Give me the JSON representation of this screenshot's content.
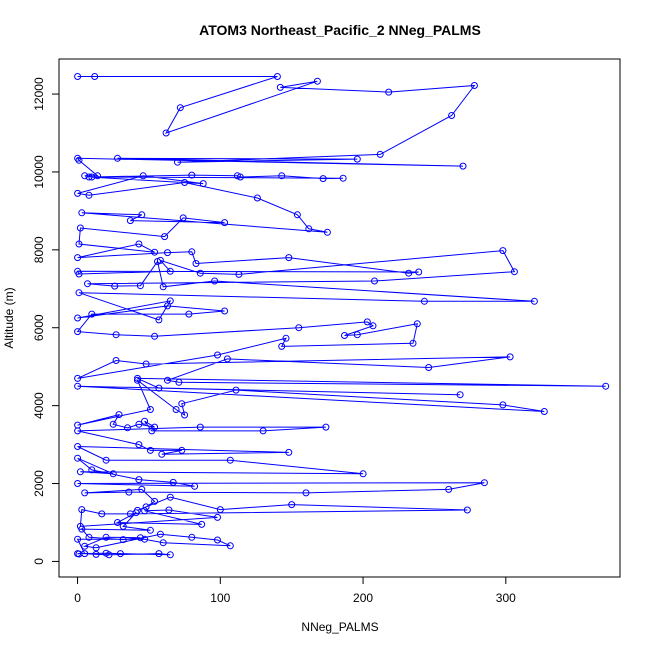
{
  "chart_data": {
    "type": "scatter",
    "title": "ATOM3 Northeast_Pacific_2 NNeg_PALMS",
    "xlabel": "NNeg_PALMS",
    "ylabel": "Altitude (m)",
    "xlim": [
      -13,
      380
    ],
    "ylim": [
      -400,
      12900
    ],
    "x_ticks": [
      0,
      100,
      200,
      300
    ],
    "y_ticks": [
      0,
      2000,
      4000,
      6000,
      8000,
      10000,
      12000
    ],
    "series_color": "#0000ff",
    "marker": "open-circle",
    "connected": true,
    "grid": false,
    "series": [
      {
        "points": [
          [
            0,
            12450
          ],
          [
            12,
            12450
          ],
          [
            140,
            12450
          ],
          [
            72,
            11650
          ],
          [
            62,
            11000
          ],
          [
            168,
            12330
          ],
          [
            142,
            12170
          ],
          [
            218,
            12050
          ],
          [
            278,
            12220
          ],
          [
            262,
            11450
          ],
          [
            212,
            10450
          ],
          [
            70,
            10250
          ],
          [
            196,
            10330
          ],
          [
            28,
            10350
          ],
          [
            270,
            10150
          ],
          [
            0,
            10350
          ],
          [
            1,
            10300
          ],
          [
            14,
            9900
          ],
          [
            5,
            9900
          ],
          [
            10,
            9870
          ],
          [
            80,
            9920
          ],
          [
            112,
            9900
          ],
          [
            114,
            9870
          ],
          [
            143,
            9900
          ],
          [
            172,
            9830
          ],
          [
            186,
            9840
          ],
          [
            8,
            9870
          ],
          [
            88,
            9700
          ],
          [
            46,
            9900
          ],
          [
            0,
            9450
          ],
          [
            8,
            9400
          ],
          [
            75,
            9730
          ],
          [
            126,
            9330
          ],
          [
            154,
            8900
          ],
          [
            162,
            8540
          ],
          [
            175,
            8450
          ],
          [
            3,
            8950
          ],
          [
            45,
            8900
          ],
          [
            37,
            8750
          ],
          [
            103,
            8700
          ],
          [
            74,
            8820
          ],
          [
            61,
            8340
          ],
          [
            2,
            8560
          ],
          [
            1,
            8150
          ],
          [
            54,
            7940
          ],
          [
            43,
            8150
          ],
          [
            0,
            7800
          ],
          [
            63,
            7930
          ],
          [
            80,
            7950
          ],
          [
            83,
            7650
          ],
          [
            148,
            7800
          ],
          [
            232,
            7400
          ],
          [
            239,
            7430
          ],
          [
            0,
            7450
          ],
          [
            1,
            7380
          ],
          [
            65,
            7450
          ],
          [
            58,
            7730
          ],
          [
            86,
            7400
          ],
          [
            113,
            7370
          ],
          [
            298,
            7980
          ],
          [
            306,
            7440
          ],
          [
            208,
            7200
          ],
          [
            7,
            7130
          ],
          [
            26,
            7070
          ],
          [
            44,
            7080
          ],
          [
            56,
            7700
          ],
          [
            60,
            7050
          ],
          [
            96,
            7200
          ],
          [
            320,
            6680
          ],
          [
            243,
            6680
          ],
          [
            1,
            6900
          ],
          [
            57,
            6200
          ],
          [
            65,
            6690
          ],
          [
            0,
            6250
          ],
          [
            63,
            6560
          ],
          [
            103,
            6430
          ],
          [
            78,
            6350
          ],
          [
            10,
            6350
          ],
          [
            0,
            5900
          ],
          [
            27,
            5820
          ],
          [
            54,
            5780
          ],
          [
            155,
            6000
          ],
          [
            203,
            6150
          ],
          [
            207,
            6050
          ],
          [
            187,
            5800
          ],
          [
            196,
            5820
          ],
          [
            238,
            6100
          ],
          [
            235,
            5600
          ],
          [
            143,
            5520
          ],
          [
            146,
            5730
          ],
          [
            98,
            5300
          ],
          [
            0,
            4700
          ],
          [
            27,
            5160
          ],
          [
            48,
            5070
          ],
          [
            303,
            5250
          ],
          [
            246,
            4980
          ],
          [
            105,
            5200
          ],
          [
            63,
            4650
          ],
          [
            71,
            4600
          ],
          [
            370,
            4500
          ],
          [
            42,
            4700
          ],
          [
            57,
            4450
          ],
          [
            268,
            4280
          ],
          [
            0,
            4500
          ],
          [
            327,
            3850
          ],
          [
            298,
            4020
          ],
          [
            111,
            4400
          ],
          [
            73,
            4050
          ],
          [
            75,
            3760
          ],
          [
            69,
            3900
          ],
          [
            42,
            4650
          ],
          [
            51,
            3900
          ],
          [
            0,
            3500
          ],
          [
            29,
            3770
          ],
          [
            25,
            3520
          ],
          [
            35,
            3430
          ],
          [
            43,
            3520
          ],
          [
            54,
            3450
          ],
          [
            47,
            3600
          ],
          [
            52,
            3350
          ],
          [
            130,
            3350
          ],
          [
            174,
            3450
          ],
          [
            86,
            3450
          ],
          [
            0,
            3350
          ],
          [
            43,
            3000
          ],
          [
            51,
            2850
          ],
          [
            73,
            2850
          ],
          [
            59,
            2750
          ],
          [
            148,
            2800
          ],
          [
            0,
            2950
          ],
          [
            20,
            2600
          ],
          [
            107,
            2600
          ],
          [
            200,
            2250
          ],
          [
            2,
            2300
          ],
          [
            25,
            2250
          ],
          [
            0,
            2650
          ],
          [
            10,
            2350
          ],
          [
            43,
            2100
          ],
          [
            67,
            2030
          ],
          [
            82,
            1930
          ],
          [
            0,
            2000
          ],
          [
            285,
            2020
          ],
          [
            260,
            1850
          ],
          [
            160,
            1760
          ],
          [
            36,
            1780
          ],
          [
            5,
            1760
          ],
          [
            45,
            1850
          ],
          [
            54,
            1540
          ],
          [
            48,
            1400
          ],
          [
            42,
            1310
          ],
          [
            65,
            1650
          ],
          [
            100,
            1330
          ],
          [
            150,
            1460
          ],
          [
            273,
            1320
          ],
          [
            37,
            1220
          ],
          [
            17,
            1220
          ],
          [
            3,
            1330
          ],
          [
            2,
            900
          ],
          [
            98,
            1130
          ],
          [
            64,
            1320
          ],
          [
            47,
            1300
          ],
          [
            87,
            950
          ],
          [
            28,
            1000
          ],
          [
            41,
            1250
          ],
          [
            32,
            900
          ],
          [
            51,
            800
          ],
          [
            3,
            830
          ],
          [
            8,
            620
          ],
          [
            32,
            560
          ],
          [
            44,
            610
          ],
          [
            20,
            620
          ],
          [
            5,
            390
          ],
          [
            13,
            350
          ],
          [
            58,
            700
          ],
          [
            80,
            620
          ],
          [
            98,
            550
          ],
          [
            107,
            400
          ],
          [
            60,
            480
          ],
          [
            47,
            570
          ],
          [
            0,
            570
          ],
          [
            5,
            200
          ],
          [
            13,
            180
          ],
          [
            22,
            170
          ],
          [
            57,
            200
          ],
          [
            65,
            170
          ],
          [
            30,
            200
          ],
          [
            20,
            210
          ],
          [
            0,
            200
          ],
          [
            1,
            190
          ]
        ]
      }
    ]
  }
}
